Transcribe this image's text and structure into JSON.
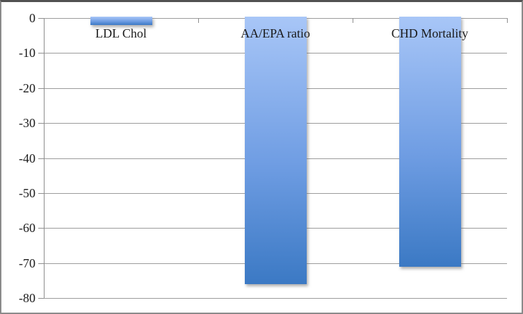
{
  "chart_data": {
    "type": "bar",
    "categories": [
      "LDL Chol",
      "AA/EPA ratio",
      "CHD Mortality"
    ],
    "values": [
      -2,
      -76,
      -71
    ],
    "title": "",
    "xlabel": "",
    "ylabel": "",
    "ylim": [
      -80,
      0
    ],
    "yticks": [
      0,
      -10,
      -20,
      -30,
      -40,
      -50,
      -60,
      -70,
      -80
    ],
    "ytick_labels": [
      "0",
      "-10",
      "-20",
      "-30",
      "-40",
      "-50",
      "-60",
      "-70",
      "-80"
    ],
    "grid": true,
    "legend": false,
    "bar_gradient_top": "#a8c6f7",
    "bar_gradient_mid": "#6f9de3",
    "bar_gradient_bottom": "#3b79c4",
    "gridline_color": "#9a9a9a",
    "axis_color": "#8c8c8c",
    "text_color": "#1a1a1a"
  }
}
